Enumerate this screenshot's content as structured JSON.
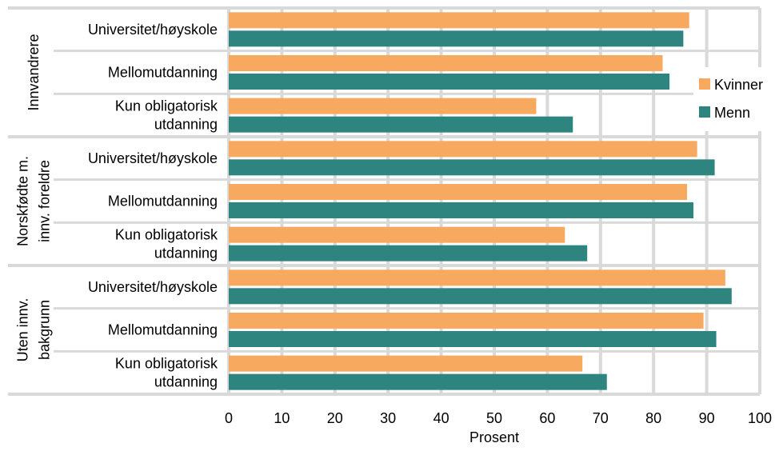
{
  "chart_data": {
    "type": "bar",
    "orientation": "horizontal",
    "title": "",
    "xlabel": "Prosent",
    "ylabel": "",
    "xlim": [
      0,
      100
    ],
    "x_ticks": [
      "0",
      "10",
      "20",
      "30",
      "40",
      "50",
      "60",
      "70",
      "80",
      "90",
      "100"
    ],
    "grid": true,
    "legend_position": "right",
    "groups": [
      {
        "label": "Innvandrere",
        "categories": [
          {
            "label": [
              "Universitet/høyskole"
            ],
            "values": {
              "Kvinner": 86.7,
              "Menn": 85.6
            }
          },
          {
            "label": [
              "Mellomutdanning"
            ],
            "values": {
              "Kvinner": 81.7,
              "Menn": 83.0
            }
          },
          {
            "label": [
              "Kun obligatorisk",
              "utdanning"
            ],
            "values": {
              "Kvinner": 57.9,
              "Menn": 64.8
            }
          }
        ]
      },
      {
        "label": "Norskfødte m. innv. foreldre",
        "label_lines": [
          "Norskfødte m.",
          "innv. foreldre"
        ],
        "categories": [
          {
            "label": [
              "Universitet/høyskole"
            ],
            "values": {
              "Kvinner": 88.2,
              "Menn": 91.5
            }
          },
          {
            "label": [
              "Mellomutdanning"
            ],
            "values": {
              "Kvinner": 86.3,
              "Menn": 87.5
            }
          },
          {
            "label": [
              "Kun obligatorisk",
              "utdanning"
            ],
            "values": {
              "Kvinner": 63.3,
              "Menn": 67.5
            }
          }
        ]
      },
      {
        "label": "Uten innv. bakgrunn",
        "label_lines": [
          "Uten innv.",
          "bakgrunn"
        ],
        "categories": [
          {
            "label": [
              "Universitet/høyskole"
            ],
            "values": {
              "Kvinner": 93.5,
              "Menn": 94.7
            }
          },
          {
            "label": [
              "Mellomutdanning"
            ],
            "values": {
              "Kvinner": 89.4,
              "Menn": 91.8
            }
          },
          {
            "label": [
              "Kun obligatorisk",
              "utdanning"
            ],
            "values": {
              "Kvinner": 66.6,
              "Menn": 71.2
            }
          }
        ]
      }
    ],
    "series": [
      {
        "name": "Kvinner",
        "color": "#f6a95f"
      },
      {
        "name": "Menn",
        "color": "#2e8580"
      }
    ]
  }
}
